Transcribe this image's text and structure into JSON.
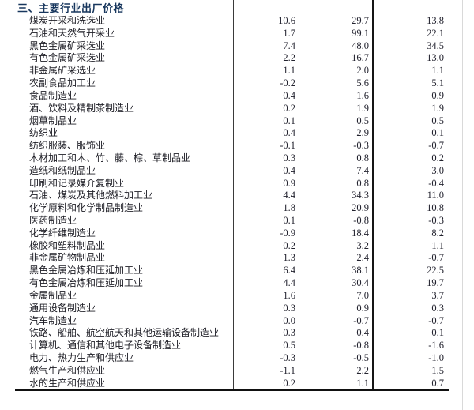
{
  "title": "三、主要行业出厂价格",
  "colors": {
    "title": "#17365d",
    "body_text": "#20202a",
    "table_rule": "#111111",
    "column_line": "#3a3a3a",
    "faint_edge_line": "#d9d9d9"
  },
  "table": {
    "rows": [
      {
        "name": "煤炭开采和洗选业",
        "values": [
          "10.6",
          "29.7",
          "13.8"
        ]
      },
      {
        "name": "石油和天然气开采业",
        "values": [
          "1.7",
          "99.1",
          "22.1"
        ]
      },
      {
        "name": "黑色金属矿采选业",
        "values": [
          "7.4",
          "48.0",
          "34.5"
        ]
      },
      {
        "name": "有色金属矿采选业",
        "values": [
          "2.2",
          "16.7",
          "13.0"
        ]
      },
      {
        "name": "非金属矿采选业",
        "values": [
          "1.1",
          "2.0",
          "1.1"
        ]
      },
      {
        "name": "农副食品加工业",
        "values": [
          "-0.2",
          "5.6",
          "5.1"
        ]
      },
      {
        "name": "食品制造业",
        "values": [
          "0.4",
          "1.6",
          "0.9"
        ]
      },
      {
        "name": "酒、饮料及精制茶制造业",
        "values": [
          "0.2",
          "1.9",
          "1.9"
        ]
      },
      {
        "name": "烟草制品业",
        "values": [
          "0.1",
          "0.5",
          "0.5"
        ]
      },
      {
        "name": "纺织业",
        "values": [
          "0.4",
          "2.9",
          "0.1"
        ]
      },
      {
        "name": "纺织服装、服饰业",
        "values": [
          "-0.1",
          "-0.3",
          "-0.7"
        ]
      },
      {
        "name": "木材加工和木、竹、藤、棕、草制品业",
        "values": [
          "0.3",
          "0.8",
          "0.2"
        ]
      },
      {
        "name": "造纸和纸制品业",
        "values": [
          "0.4",
          "7.4",
          "3.0"
        ]
      },
      {
        "name": "印刷和记录媒介复制业",
        "values": [
          "0.9",
          "0.8",
          "-0.4"
        ]
      },
      {
        "name": "石油、煤炭及其他燃料加工业",
        "values": [
          "4.4",
          "34.3",
          "11.0"
        ]
      },
      {
        "name": "化学原料和化学制品制造业",
        "values": [
          "1.8",
          "20.9",
          "10.8"
        ]
      },
      {
        "name": "医药制造业",
        "values": [
          "0.1",
          "-0.8",
          "-0.3"
        ]
      },
      {
        "name": "化学纤维制造业",
        "values": [
          "-0.9",
          "18.4",
          "8.2"
        ]
      },
      {
        "name": "橡胶和塑料制品业",
        "values": [
          "0.2",
          "3.2",
          "1.1"
        ]
      },
      {
        "name": "非金属矿物制品业",
        "values": [
          "1.3",
          "2.4",
          "-0.7"
        ]
      },
      {
        "name": "黑色金属冶炼和压延加工业",
        "values": [
          "6.4",
          "38.1",
          "22.5"
        ]
      },
      {
        "name": "有色金属冶炼和压延加工业",
        "values": [
          "4.4",
          "30.4",
          "19.7"
        ]
      },
      {
        "name": "金属制品业",
        "values": [
          "1.6",
          "7.0",
          "3.7"
        ]
      },
      {
        "name": "通用设备制造业",
        "values": [
          "0.3",
          "0.9",
          "0.3"
        ]
      },
      {
        "name": "汽车制造业",
        "values": [
          "0.0",
          "-0.7",
          "-0.7"
        ]
      },
      {
        "name": "铁路、船舶、航空航天和其他运输设备制造业",
        "values": [
          "0.3",
          "0.4",
          "0.1"
        ]
      },
      {
        "name": "计算机、通信和其他电子设备制造业",
        "values": [
          "0.5",
          "-0.8",
          "-1.6"
        ]
      },
      {
        "name": "电力、热力生产和供应业",
        "values": [
          "-0.3",
          "-0.5",
          "-1.0"
        ]
      },
      {
        "name": "燃气生产和供应业",
        "values": [
          "-1.1",
          "2.2",
          "1.5"
        ]
      },
      {
        "name": "水的生产和供应业",
        "values": [
          "0.2",
          "1.1",
          "0.7"
        ]
      }
    ]
  }
}
